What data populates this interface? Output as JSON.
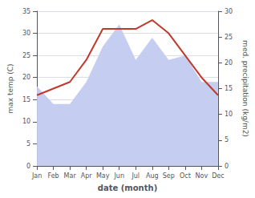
{
  "chart_data": {
    "type": "line",
    "xlabel": "date (month)",
    "ylabel": "max temp (C)",
    "y2label": "med. precipitation (kg/m2)",
    "categories": [
      "Jan",
      "Feb",
      "Mar",
      "Apr",
      "May",
      "Jun",
      "Jul",
      "Aug",
      "Sep",
      "Oct",
      "Nov",
      "Dec"
    ],
    "series": [
      {
        "type": "area",
        "color": "#c5cdf0",
        "values": [
          18,
          14,
          14,
          19,
          27,
          32,
          24,
          29,
          24,
          25,
          19,
          19
        ]
      },
      {
        "type": "line",
        "color": "#c0392b",
        "values": [
          16,
          17.5,
          19,
          24,
          31,
          31,
          31,
          33,
          30,
          25,
          20,
          16
        ]
      }
    ],
    "ylim": [
      0,
      35
    ],
    "yticks": [
      0,
      5,
      10,
      15,
      20,
      25,
      30,
      35
    ],
    "y2lim": [
      0,
      30
    ],
    "y2ticks": [
      0,
      5,
      10,
      15,
      20,
      25,
      30
    ],
    "grid": true
  }
}
